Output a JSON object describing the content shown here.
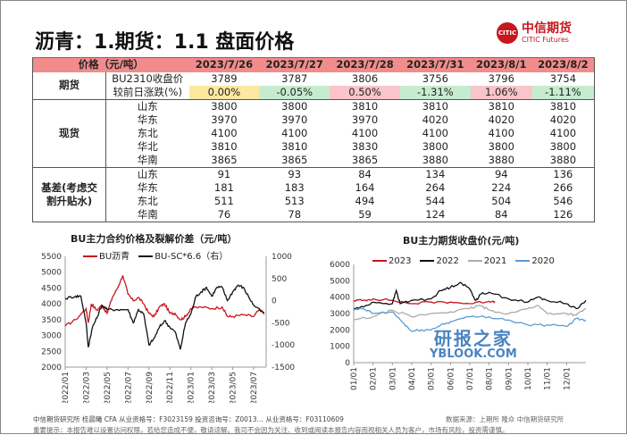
{
  "header": {
    "title": "沥青：1.期货：1.1 盘面价格",
    "logo_cn": "中信期货",
    "logo_en": "CITIC Futures",
    "logo_mark": "CITIC"
  },
  "table": {
    "corner": "价格（元/吨）",
    "dates": [
      "2023/7/26",
      "2023/7/27",
      "2023/7/28",
      "2023/7/31",
      "2023/8/1",
      "2023/8/2"
    ],
    "groups": [
      {
        "label": "期货",
        "rows": [
          {
            "name": "BU2310收盘价",
            "values": [
              "3789",
              "3787",
              "3806",
              "3756",
              "3796",
              "3754"
            ]
          },
          {
            "name": "较前日涨跌(%)",
            "values": [
              "0.00%",
              "-0.05%",
              "0.50%",
              "-1.31%",
              "1.06%",
              "-1.11%"
            ],
            "change": true
          }
        ]
      },
      {
        "label": "现货",
        "rows": [
          {
            "name": "山东",
            "values": [
              "3800",
              "3800",
              "3810",
              "3810",
              "3810",
              "3810"
            ]
          },
          {
            "name": "华东",
            "values": [
              "3970",
              "3970",
              "3970",
              "4020",
              "4020",
              "4020"
            ]
          },
          {
            "name": "东北",
            "values": [
              "4100",
              "4100",
              "4100",
              "4100",
              "4100",
              "4100"
            ]
          },
          {
            "name": "华北",
            "values": [
              "3810",
              "3810",
              "3830",
              "3800",
              "3800",
              "3800"
            ]
          },
          {
            "name": "华南",
            "values": [
              "3865",
              "3865",
              "3865",
              "3880",
              "3880",
              "3880"
            ]
          }
        ]
      },
      {
        "label": "基差(考虑交割升贴水)",
        "rows": [
          {
            "name": "山东",
            "values": [
              "91",
              "93",
              "84",
              "134",
              "94",
              "136"
            ]
          },
          {
            "name": "华东",
            "values": [
              "181",
              "183",
              "164",
              "264",
              "224",
              "266"
            ]
          },
          {
            "name": "东北",
            "values": [
              "511",
              "513",
              "494",
              "544",
              "504",
              "546"
            ]
          },
          {
            "name": "华南",
            "values": [
              "76",
              "78",
              "59",
              "124",
              "84",
              "126"
            ]
          }
        ]
      }
    ]
  },
  "colors": {
    "pos": "#f9c4cb",
    "neg": "#c6ecd0",
    "zero": "#fde8a0",
    "brand": "#c8161d"
  },
  "chart_data": [
    {
      "type": "line",
      "title": "BU主力合约价格及裂解价差（元/吨）",
      "ylim": [
        2000,
        5500
      ],
      "yticks": [
        2000,
        2500,
        3000,
        3500,
        4000,
        4500,
        5000,
        5500
      ],
      "y2lim": [
        -1500,
        1000
      ],
      "y2ticks": [
        -1500,
        -1000,
        -500,
        0,
        500,
        1000
      ],
      "xlim": [
        0,
        19.2
      ],
      "xticks": [
        "2022/01",
        "2022/03",
        "2022/05",
        "2022/07",
        "2022/09",
        "2022/11",
        "2023/01",
        "2023/03",
        "2023/05",
        "2023/07"
      ],
      "series": [
        {
          "name": "BU沥青",
          "color": "#c8161d",
          "axis": "left",
          "x": [
            0,
            1,
            2,
            2.2,
            2.5,
            3,
            3.5,
            4,
            4.5,
            5,
            5.5,
            6,
            6.5,
            7,
            7.5,
            8,
            8.5,
            9,
            9.5,
            10,
            10.5,
            11,
            11.5,
            12,
            13,
            14,
            15,
            15.5,
            16,
            17,
            18,
            18.5,
            19
          ],
          "y": [
            3300,
            3500,
            3850,
            3400,
            4000,
            3800,
            3950,
            3700,
            4200,
            4500,
            4900,
            4300,
            4100,
            4200,
            4000,
            3700,
            3600,
            3900,
            4000,
            3700,
            3700,
            3500,
            3600,
            3850,
            3900,
            3850,
            3900,
            3600,
            3600,
            3650,
            3600,
            3800,
            3750
          ]
        },
        {
          "name": "BU-SC*6.6（右）",
          "color": "#111111",
          "axis": "right",
          "x": [
            0,
            1,
            1.5,
            2,
            2.2,
            2.6,
            3,
            3.5,
            4,
            5,
            6,
            6.5,
            7,
            7.5,
            8,
            8.5,
            9,
            9.5,
            10,
            10.5,
            11,
            11.5,
            12,
            12.5,
            13,
            13.5,
            14,
            14.5,
            15,
            15.5,
            16,
            16.5,
            17,
            17.5,
            18,
            19
          ],
          "y": [
            50,
            100,
            100,
            -500,
            -1050,
            -600,
            -400,
            -100,
            -200,
            -200,
            -200,
            -500,
            -200,
            -300,
            -1000,
            -850,
            -600,
            -450,
            -600,
            -700,
            -1100,
            -500,
            -300,
            100,
            200,
            300,
            100,
            300,
            300,
            0,
            200,
            350,
            300,
            100,
            -100,
            -300
          ]
        }
      ]
    },
    {
      "type": "line",
      "title": "BU主力期货收盘价(元/吨)",
      "ylim": [
        0,
        6000
      ],
      "yticks": [
        0,
        1000,
        2000,
        3000,
        4000,
        5000,
        6000
      ],
      "xlim": [
        0,
        12
      ],
      "xticks": [
        "01/01",
        "02/01",
        "03/01",
        "04/01",
        "05/01",
        "06/01",
        "07/01",
        "08/01",
        "09/01",
        "10/01",
        "11/01",
        "12/01"
      ],
      "series": [
        {
          "name": "2023",
          "color": "#c8161d",
          "x": [
            0,
            0.5,
            1,
            2,
            3,
            4,
            5,
            6,
            7,
            7.3
          ],
          "y": [
            3800,
            3800,
            3900,
            3800,
            3600,
            3700,
            3700,
            3600,
            3750,
            3750
          ]
        },
        {
          "name": "2022",
          "color": "#111111",
          "x": [
            0,
            0.5,
            1,
            2,
            2.2,
            2.4,
            3,
            4,
            4.5,
            5,
            5.5,
            6,
            6.3,
            6.6,
            7,
            8,
            9,
            9.5,
            10,
            11,
            11.5,
            12
          ],
          "y": [
            3300,
            3400,
            3700,
            3600,
            4400,
            3600,
            3800,
            3900,
            4400,
            4600,
            4900,
            4500,
            3800,
            4200,
            4300,
            3900,
            3700,
            4000,
            3800,
            3600,
            3300,
            3800
          ]
        },
        {
          "name": "2021",
          "color": "#aaaaaa",
          "x": [
            0,
            1,
            2,
            3,
            4,
            5,
            6,
            6.5,
            7,
            8,
            9,
            9.5,
            10,
            11,
            11.5,
            12
          ],
          "y": [
            2600,
            2800,
            3200,
            2800,
            3000,
            3100,
            3300,
            3500,
            3200,
            3000,
            3300,
            3500,
            3000,
            3000,
            2900,
            3300
          ]
        },
        {
          "name": "2020",
          "color": "#5b9bd5",
          "x": [
            0,
            0.5,
            1,
            2,
            2.5,
            3,
            3.5,
            4,
            4.5,
            5,
            6,
            7,
            8,
            9,
            10,
            11,
            11.5,
            12
          ],
          "y": [
            3200,
            3300,
            3000,
            3100,
            2500,
            1900,
            2000,
            2000,
            2300,
            2500,
            2800,
            2800,
            2600,
            2300,
            2300,
            2200,
            2700,
            2600
          ]
        }
      ]
    }
  ],
  "footer": {
    "line1": "中信期货研究所 桂晨曦 CFA 从业资格号：F3023159 投资咨询号：Z0013… 从业资格号：F03110609",
    "source": "数据来源：上期所 隆众 中信期货研究所",
    "line2": "重要提示：本报告难以设置访问权限，若给您造成不便，敬请谅解。我司不会因为关注、收到或阅读本报告内容而视相关人员为客户，市场有风险，投资需谨慎。"
  },
  "watermark": {
    "cn": "研报之家",
    "en": "YBLOOK.COM"
  }
}
